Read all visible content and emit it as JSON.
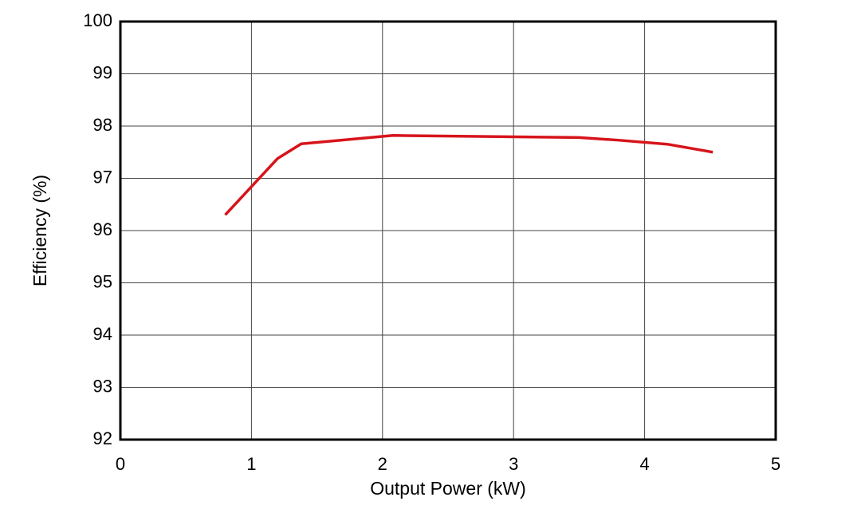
{
  "chart_data": {
    "type": "line",
    "x": [
      0.8,
      1.2,
      1.38,
      2.08,
      3.5,
      3.8,
      4.18,
      4.52
    ],
    "values": [
      96.3,
      97.38,
      97.66,
      97.82,
      97.78,
      97.73,
      97.65,
      97.5
    ],
    "color": "#d7141b",
    "xlabel": "Output Power (kW)",
    "ylabel": "Efficiency (%)",
    "xlim": [
      0,
      5
    ],
    "xticks": [
      0,
      1,
      2,
      3,
      4,
      5
    ],
    "ylim": [
      92,
      100
    ],
    "yticks": [
      92,
      93,
      94,
      95,
      96,
      97,
      98,
      99,
      100
    ],
    "grid": true
  }
}
